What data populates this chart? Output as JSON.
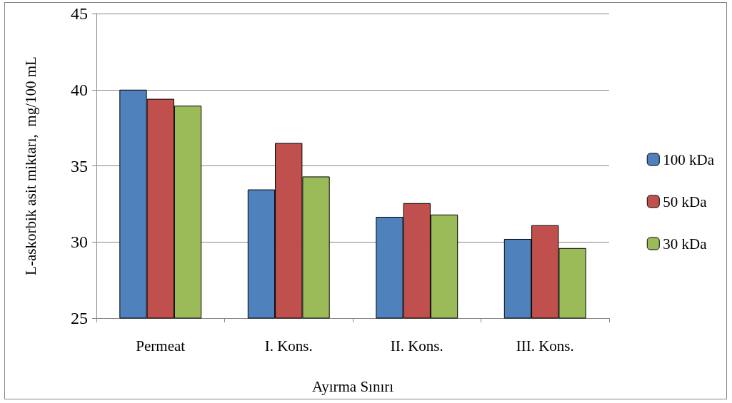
{
  "chart_data": {
    "type": "bar",
    "xlabel": "Ayırma Sınırı",
    "ylabel": "L-askorbik asit miktarı,  mg/100 mL",
    "categories": [
      "Permeat",
      "I. Kons.",
      "II. Kons.",
      "III. Kons."
    ],
    "series": [
      {
        "name": "100 kDa",
        "color": "#4f81bd",
        "values": [
          40.0,
          33.45,
          31.65,
          30.2
        ]
      },
      {
        "name": "50 kDa",
        "color": "#c0504d",
        "values": [
          39.4,
          36.5,
          32.55,
          31.1
        ]
      },
      {
        "name": "30 kDa",
        "color": "#9bbb59",
        "values": [
          38.95,
          34.3,
          31.8,
          29.6
        ]
      }
    ],
    "ylim": [
      25,
      45
    ],
    "yticks": [
      25,
      30,
      35,
      40,
      45
    ],
    "grid": "y",
    "legend": "right"
  }
}
